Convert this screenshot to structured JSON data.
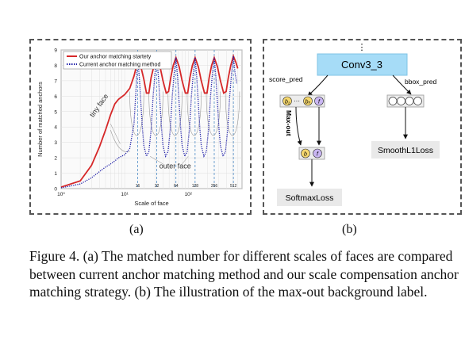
{
  "figure": {
    "panel_a_label": "(a)",
    "panel_b_label": "(b)",
    "caption": "Figure 4. (a) The matched number for different scales of faces are compared between current anchor matching method and our scale compensation anchor matching strategy. (b) The illustration of the max-out background label."
  },
  "chart_data": {
    "type": "line",
    "xlabel": "Scale of face",
    "ylabel": "Number of matched anchors",
    "xscale": "log",
    "xlim": [
      1,
      700
    ],
    "ylim": [
      0,
      9
    ],
    "x_ticks": [
      "10⁰",
      "10¹",
      "10²"
    ],
    "y_ticks": [
      "0",
      "1",
      "2",
      "3",
      "4",
      "5",
      "6",
      "7",
      "8",
      "9"
    ],
    "vlines": [
      16,
      32,
      64,
      128,
      256,
      512
    ],
    "vline_labels": [
      "16",
      "32",
      "64",
      "128",
      "256",
      "512"
    ],
    "legend_position": "top-left",
    "annotations": [
      "tiny face",
      "outer face"
    ],
    "series": [
      {
        "name": "Our anchor matching startety",
        "color": "#d62728",
        "style": "solid",
        "points": [
          [
            1,
            0.1
          ],
          [
            2,
            0.5
          ],
          [
            3,
            1.5
          ],
          [
            4,
            2.7
          ],
          [
            5,
            3.8
          ],
          [
            6,
            4.8
          ],
          [
            7,
            5.5
          ],
          [
            8,
            5.8
          ],
          [
            10,
            6.1
          ],
          [
            12,
            6.5
          ],
          [
            14,
            7.3
          ],
          [
            15,
            7.8
          ],
          [
            16,
            8.5
          ],
          [
            18,
            7.9
          ],
          [
            20,
            7.1
          ],
          [
            22,
            6.2
          ],
          [
            24,
            6.2
          ],
          [
            26,
            7.2
          ],
          [
            29,
            8.0
          ],
          [
            32,
            8.5
          ],
          [
            36,
            7.9
          ],
          [
            40,
            7.0
          ],
          [
            45,
            6.2
          ],
          [
            49,
            6.3
          ],
          [
            53,
            7.2
          ],
          [
            58,
            8.0
          ],
          [
            64,
            8.5
          ],
          [
            72,
            7.9
          ],
          [
            80,
            7.0
          ],
          [
            90,
            6.2
          ],
          [
            98,
            6.2
          ],
          [
            106,
            7.2
          ],
          [
            116,
            8.0
          ],
          [
            128,
            8.5
          ],
          [
            144,
            7.9
          ],
          [
            160,
            7.0
          ],
          [
            180,
            6.2
          ],
          [
            197,
            6.2
          ],
          [
            213,
            7.2
          ],
          [
            233,
            8.0
          ],
          [
            256,
            8.5
          ],
          [
            288,
            7.9
          ],
          [
            320,
            7.0
          ],
          [
            360,
            6.2
          ],
          [
            394,
            6.3
          ],
          [
            426,
            7.2
          ],
          [
            466,
            8.0
          ],
          [
            512,
            8.6
          ],
          [
            560,
            8.2
          ],
          [
            600,
            7.8
          ]
        ]
      },
      {
        "name": "Current anchor matching method",
        "color": "#1f1fa8",
        "style": "dotted",
        "points": [
          [
            1,
            0.05
          ],
          [
            2,
            0.3
          ],
          [
            3,
            0.7
          ],
          [
            4,
            1.1
          ],
          [
            5,
            1.4
          ],
          [
            6,
            1.6
          ],
          [
            7,
            1.8
          ],
          [
            8,
            2.0
          ],
          [
            10,
            2.2
          ],
          [
            12,
            2.6
          ],
          [
            14,
            4.2
          ],
          [
            15,
            6.3
          ],
          [
            16,
            8.5
          ],
          [
            17,
            7.2
          ],
          [
            18,
            5.5
          ],
          [
            19,
            3.9
          ],
          [
            20,
            2.8
          ],
          [
            22,
            2.1
          ],
          [
            24,
            2.4
          ],
          [
            26,
            3.8
          ],
          [
            28,
            6.0
          ],
          [
            30,
            7.5
          ],
          [
            32,
            8.5
          ],
          [
            34,
            7.2
          ],
          [
            36,
            5.5
          ],
          [
            38,
            3.9
          ],
          [
            40,
            2.8
          ],
          [
            44,
            2.1
          ],
          [
            48,
            2.4
          ],
          [
            52,
            3.8
          ],
          [
            56,
            6.0
          ],
          [
            60,
            7.5
          ],
          [
            64,
            8.5
          ],
          [
            68,
            7.2
          ],
          [
            72,
            5.5
          ],
          [
            76,
            3.9
          ],
          [
            80,
            2.8
          ],
          [
            88,
            2.1
          ],
          [
            96,
            2.4
          ],
          [
            104,
            3.8
          ],
          [
            112,
            6.0
          ],
          [
            120,
            7.5
          ],
          [
            128,
            8.5
          ],
          [
            136,
            7.2
          ],
          [
            144,
            5.5
          ],
          [
            152,
            3.9
          ],
          [
            160,
            2.8
          ],
          [
            176,
            2.1
          ],
          [
            192,
            2.4
          ],
          [
            208,
            3.8
          ],
          [
            224,
            6.0
          ],
          [
            240,
            7.5
          ],
          [
            256,
            8.5
          ],
          [
            272,
            7.2
          ],
          [
            288,
            5.5
          ],
          [
            304,
            3.9
          ],
          [
            320,
            2.8
          ],
          [
            352,
            2.1
          ],
          [
            384,
            2.4
          ],
          [
            416,
            3.8
          ],
          [
            448,
            6.0
          ],
          [
            480,
            7.5
          ],
          [
            512,
            8.6
          ],
          [
            540,
            7.6
          ],
          [
            580,
            6.8
          ]
        ]
      }
    ]
  },
  "diagram": {
    "top_dots": "⋮",
    "conv_label": "Conv3_3",
    "score_pred_label": "score_pred",
    "bbox_pred_label": "bbox_pred",
    "node_b1": "b₁",
    "node_dots": "···",
    "node_bN": "bₙ",
    "node_f": "f",
    "maxout_label": "Max-out",
    "node_b_out": "b",
    "node_f_out": "f",
    "softmax_label": "SoftmaxLoss",
    "smoothl1_label": "SmoothL1Loss",
    "colors": {
      "conv_fill": "#a6dcf7",
      "box_fill": "#e9e9e9",
      "node_b": "#f5d76e",
      "node_f": "#c9b6f2"
    }
  }
}
